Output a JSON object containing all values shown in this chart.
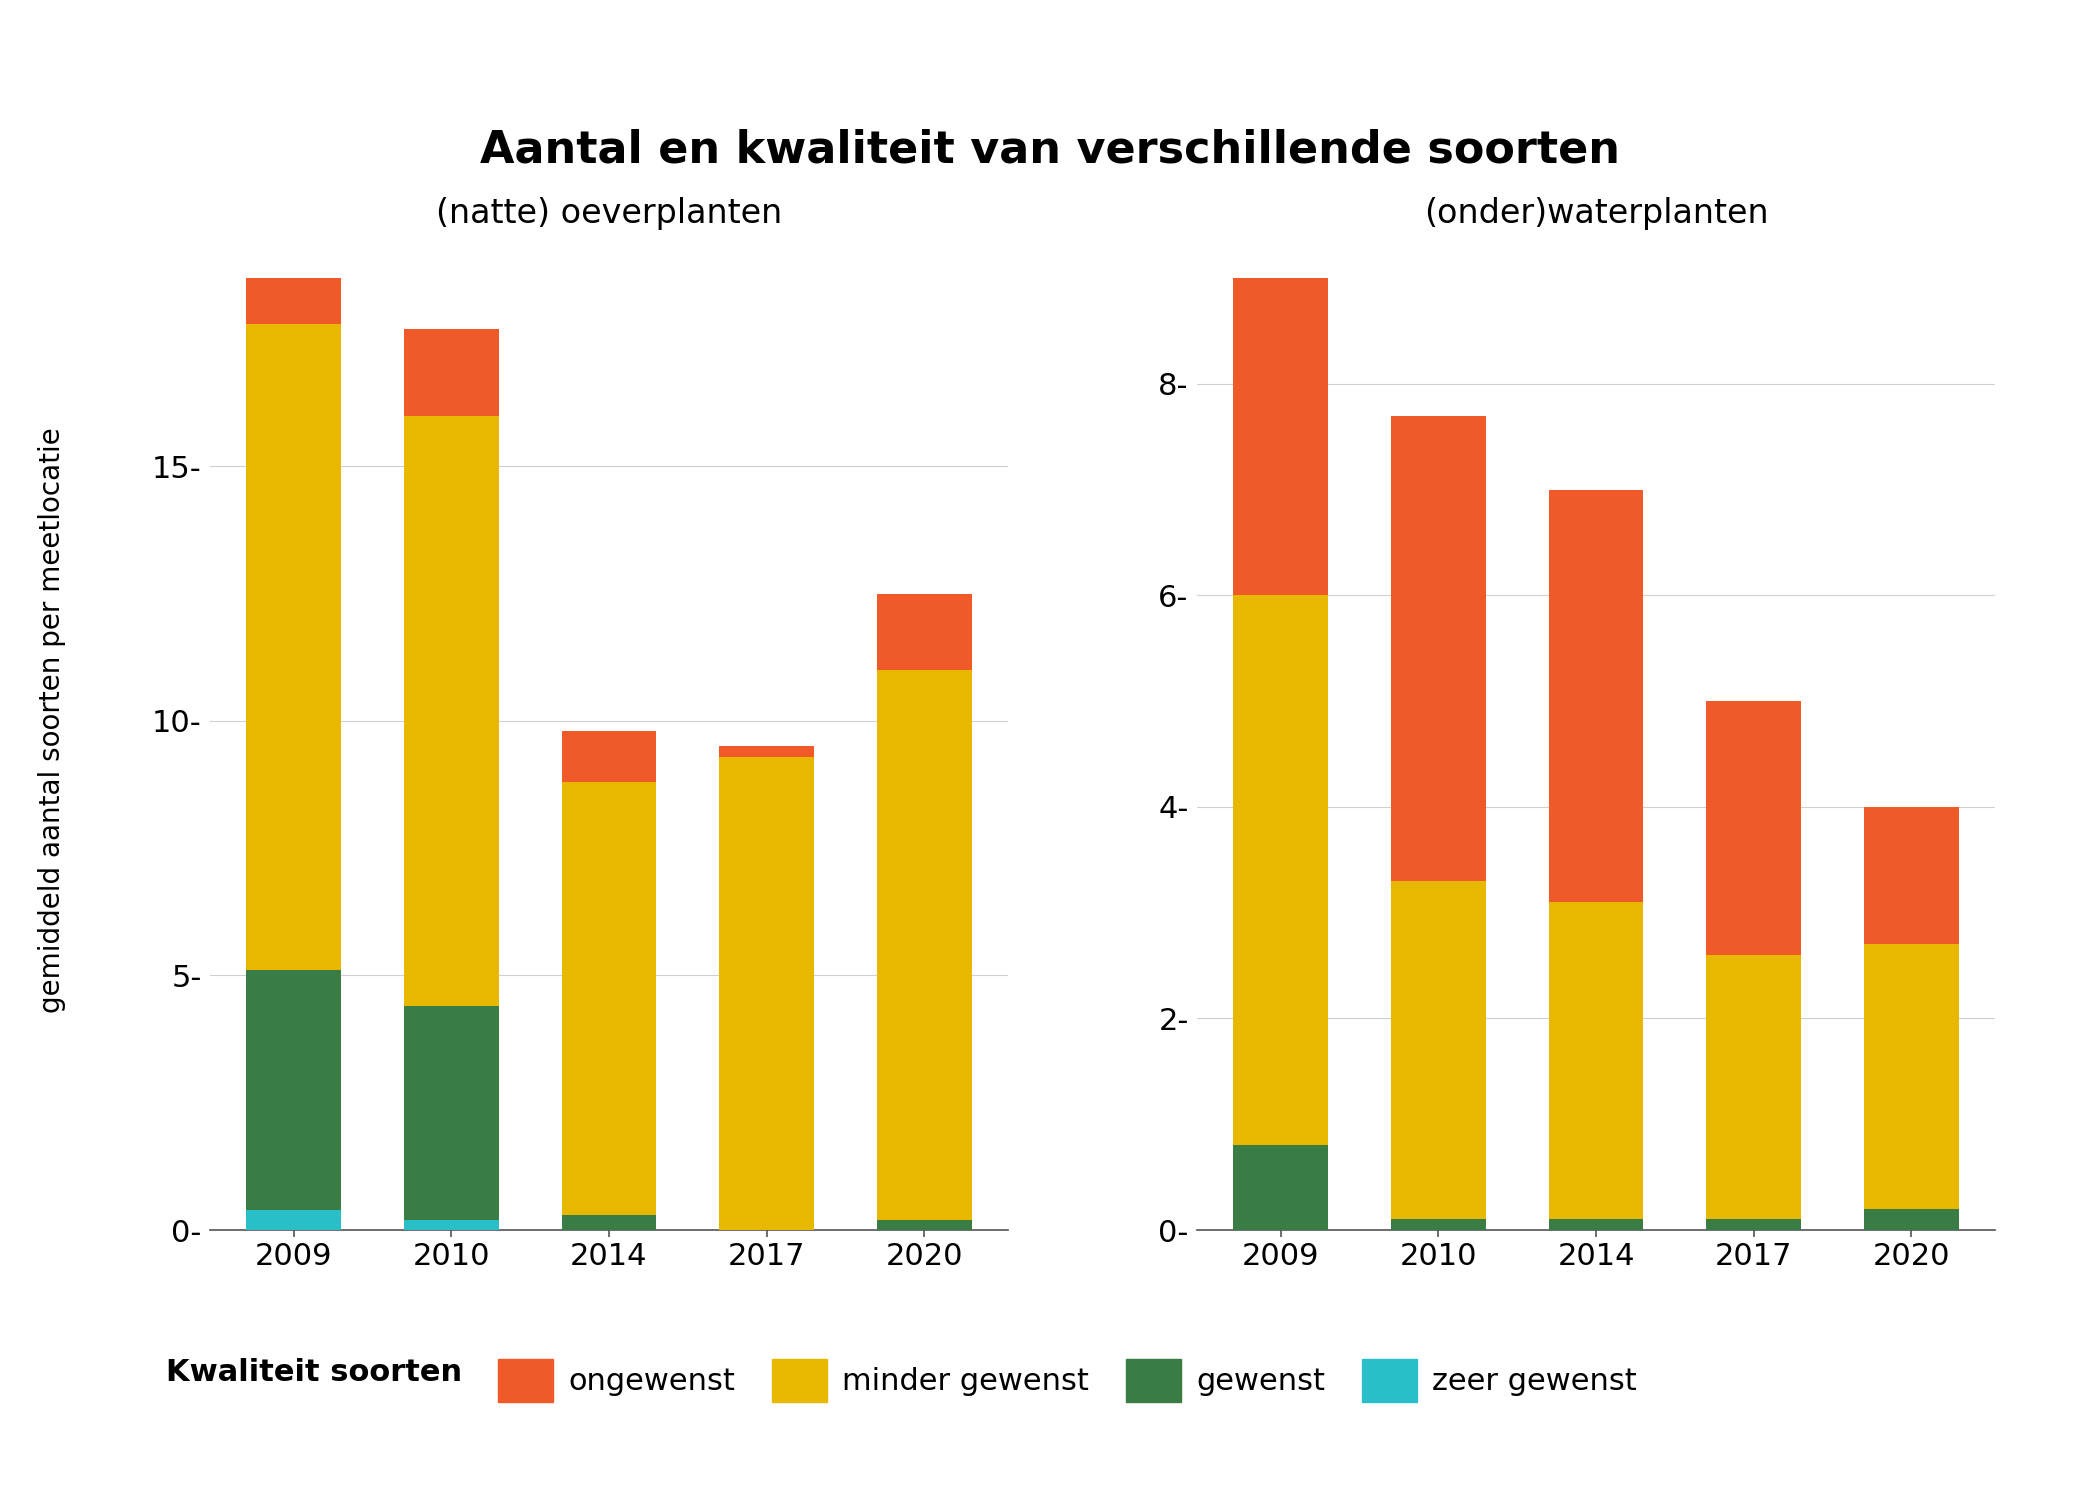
{
  "title": "Aantal en kwaliteit van verschillende soorten",
  "subtitle_left": "(natte) oeverplanten",
  "subtitle_right": "(onder)waterplanten",
  "ylabel": "gemiddeld aantal soorten per meetlocatie",
  "years": [
    "2009",
    "2010",
    "2014",
    "2017",
    "2020"
  ],
  "left": {
    "zeer_gewenst": [
      0.4,
      0.2,
      0.0,
      0.0,
      0.0
    ],
    "gewenst": [
      4.7,
      4.2,
      0.3,
      0.0,
      0.2
    ],
    "minder_gewenst": [
      12.7,
      11.6,
      8.5,
      9.3,
      10.8
    ],
    "ongewenst": [
      0.9,
      1.7,
      1.0,
      0.2,
      1.5
    ]
  },
  "right": {
    "zeer_gewenst": [
      0.0,
      0.0,
      0.0,
      0.0,
      0.0
    ],
    "gewenst": [
      0.8,
      0.1,
      0.1,
      0.1,
      0.2
    ],
    "minder_gewenst": [
      5.2,
      3.2,
      3.0,
      2.5,
      2.5
    ],
    "ongewenst": [
      3.0,
      4.4,
      3.9,
      2.4,
      1.3
    ]
  },
  "colors": {
    "ongewenst": "#F05A28",
    "minder_gewenst": "#E8B800",
    "gewenst": "#3A7D44",
    "zeer_gewenst": "#29BEC8"
  },
  "legend_labels": [
    "ongewenst",
    "minder gewenst",
    "gewenst",
    "zeer gewenst"
  ],
  "left_yticks": [
    0,
    5,
    10,
    15
  ],
  "right_yticks": [
    0,
    2,
    4,
    6,
    8
  ],
  "background_color": "#FFFFFF",
  "grid_color": "#D0D0D0"
}
